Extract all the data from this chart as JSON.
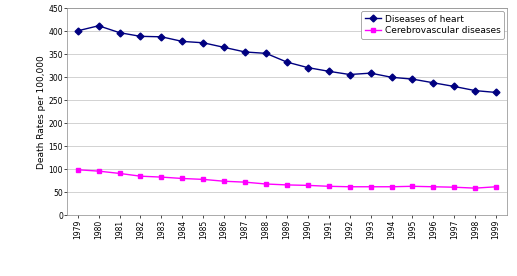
{
  "years": [
    1979,
    1980,
    1981,
    1982,
    1983,
    1984,
    1985,
    1986,
    1987,
    1988,
    1989,
    1990,
    1991,
    1992,
    1993,
    1994,
    1995,
    1996,
    1997,
    1998,
    1999
  ],
  "heart_disease": [
    401,
    412,
    397,
    389,
    388,
    378,
    375,
    365,
    355,
    352,
    333,
    321,
    313,
    306,
    309,
    300,
    296,
    288,
    280,
    271,
    267
  ],
  "cerebrovascular": [
    99,
    96,
    91,
    85,
    83,
    80,
    78,
    74,
    72,
    68,
    66,
    65,
    63,
    62,
    62,
    62,
    63,
    62,
    61,
    59,
    62
  ],
  "heart_color": "#000080",
  "cerebro_color": "#FF00FF",
  "heart_marker": "D",
  "cerebro_marker": "s",
  "ylabel": "Death Rates per 100,000",
  "ylim": [
    0,
    450
  ],
  "yticks": [
    0,
    50,
    100,
    150,
    200,
    250,
    300,
    350,
    400,
    450
  ],
  "legend_heart": "Diseases of heart",
  "legend_cerebro": "Cerebrovascular diseases",
  "bg_color": "#FFFFFF",
  "grid_color": "#C0C0C0",
  "heart_markersize": 3.5,
  "cerebro_markersize": 3.5,
  "linewidth": 1.0,
  "tick_fontsize": 5.5,
  "ylabel_fontsize": 6.5,
  "legend_fontsize": 6.5
}
